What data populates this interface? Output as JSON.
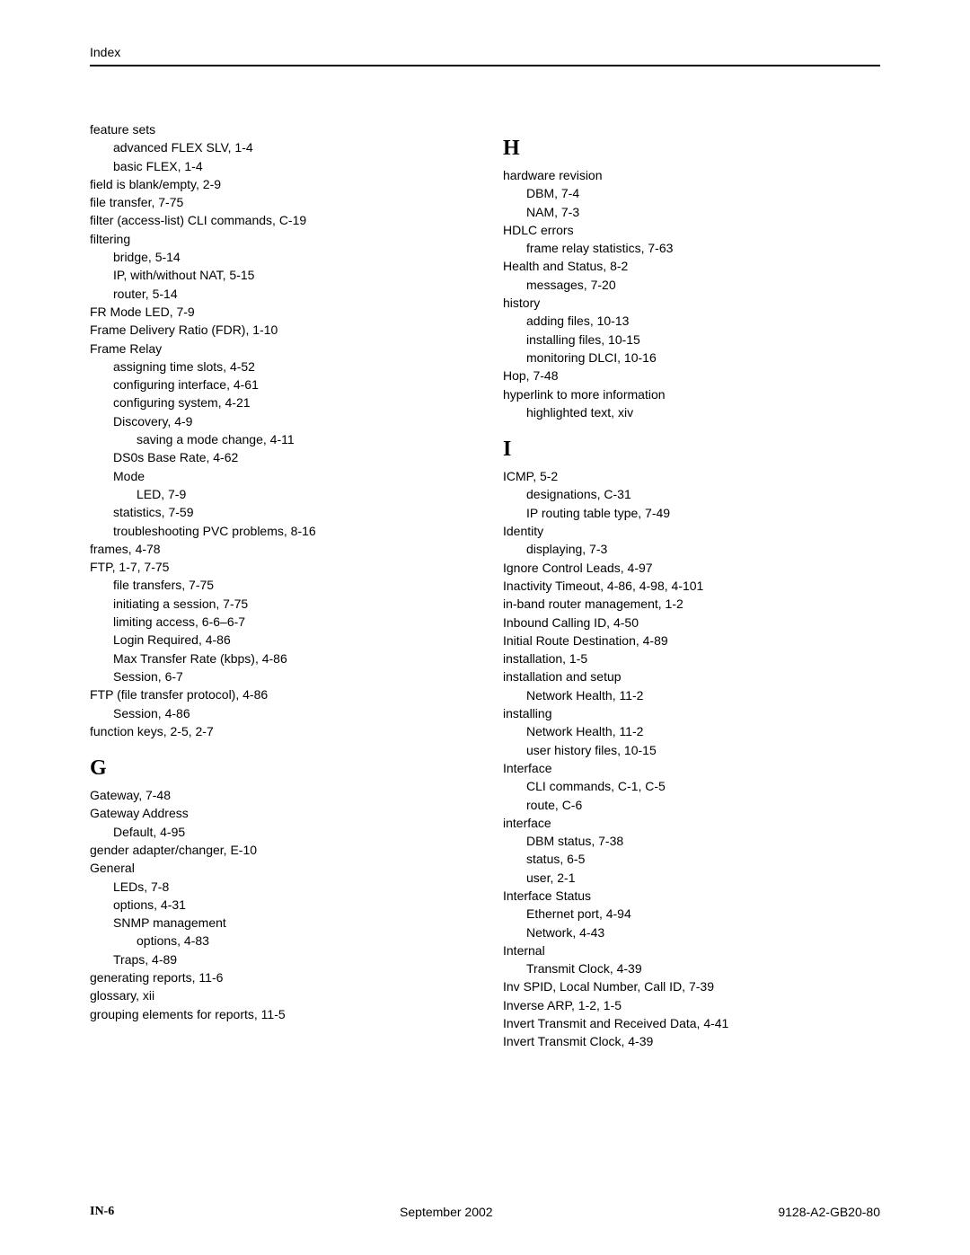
{
  "header": "Index",
  "footer": {
    "page_num": "IN-6",
    "date": "September 2002",
    "doc_id": "9128-A2-GB20-80"
  },
  "sections": {
    "left": [
      {
        "head": null,
        "entries": [
          {
            "lvl": 0,
            "text": "feature sets"
          },
          {
            "lvl": 1,
            "text": "advanced FLEX SLV,  1-4"
          },
          {
            "lvl": 1,
            "text": "basic FLEX,  1-4"
          },
          {
            "lvl": 0,
            "text": "field is blank/empty,  2-9"
          },
          {
            "lvl": 0,
            "text": "file transfer,  7-75"
          },
          {
            "lvl": 0,
            "text": "filter (access-list) CLI commands,  C-19"
          },
          {
            "lvl": 0,
            "text": "filtering"
          },
          {
            "lvl": 1,
            "text": "bridge,  5-14"
          },
          {
            "lvl": 1,
            "text": "IP, with/without NAT,  5-15"
          },
          {
            "lvl": 1,
            "text": "router,  5-14"
          },
          {
            "lvl": 0,
            "text": "FR Mode LED,  7-9"
          },
          {
            "lvl": 0,
            "text": "Frame Delivery Ratio (FDR),  1-10"
          },
          {
            "lvl": 0,
            "text": "Frame Relay"
          },
          {
            "lvl": 1,
            "text": "assigning time slots,  4-52"
          },
          {
            "lvl": 1,
            "text": "configuring interface,  4-61"
          },
          {
            "lvl": 1,
            "text": "configuring system,  4-21"
          },
          {
            "lvl": 1,
            "text": "Discovery,  4-9"
          },
          {
            "lvl": 2,
            "text": "saving a mode change,  4-11"
          },
          {
            "lvl": 1,
            "text": "DS0s Base Rate,  4-62"
          },
          {
            "lvl": 1,
            "text": "Mode"
          },
          {
            "lvl": 2,
            "text": "LED,  7-9"
          },
          {
            "lvl": 1,
            "text": "statistics,  7-59"
          },
          {
            "lvl": 1,
            "text": "troubleshooting PVC problems,  8-16"
          },
          {
            "lvl": 0,
            "text": "frames,  4-78"
          },
          {
            "lvl": 0,
            "text": "FTP,  1-7, 7-75"
          },
          {
            "lvl": 1,
            "text": "file transfers,  7-75"
          },
          {
            "lvl": 1,
            "text": "initiating a session,  7-75"
          },
          {
            "lvl": 1,
            "text": "limiting access,  6-6–6-7"
          },
          {
            "lvl": 1,
            "text": "Login Required,  4-86"
          },
          {
            "lvl": 1,
            "text": "Max Transfer Rate (kbps),  4-86"
          },
          {
            "lvl": 1,
            "text": "Session,  6-7"
          },
          {
            "lvl": 0,
            "text": "FTP (file transfer protocol),  4-86"
          },
          {
            "lvl": 1,
            "text": "Session,  4-86"
          },
          {
            "lvl": 0,
            "text": "function keys,  2-5, 2-7"
          }
        ]
      },
      {
        "head": "G",
        "entries": [
          {
            "lvl": 0,
            "text": "Gateway,  7-48"
          },
          {
            "lvl": 0,
            "text": "Gateway Address"
          },
          {
            "lvl": 1,
            "text": "Default,  4-95"
          },
          {
            "lvl": 0,
            "text": "gender adapter/changer,  E-10"
          },
          {
            "lvl": 0,
            "text": "General"
          },
          {
            "lvl": 1,
            "text": "LEDs,  7-8"
          },
          {
            "lvl": 1,
            "text": "options,  4-31"
          },
          {
            "lvl": 1,
            "text": "SNMP management"
          },
          {
            "lvl": 2,
            "text": "options,  4-83"
          },
          {
            "lvl": 1,
            "text": "Traps,  4-89"
          },
          {
            "lvl": 0,
            "text": "generating reports,  11-6"
          },
          {
            "lvl": 0,
            "text": "glossary,  xii"
          },
          {
            "lvl": 0,
            "text": "grouping elements for reports,  11-5"
          }
        ]
      }
    ],
    "right": [
      {
        "head": "H",
        "entries": [
          {
            "lvl": 0,
            "text": "hardware revision"
          },
          {
            "lvl": 1,
            "text": "DBM,  7-4"
          },
          {
            "lvl": 1,
            "text": "NAM,  7-3"
          },
          {
            "lvl": 0,
            "text": "HDLC errors"
          },
          {
            "lvl": 1,
            "text": "frame relay statistics,  7-63"
          },
          {
            "lvl": 0,
            "text": "Health and Status,  8-2"
          },
          {
            "lvl": 1,
            "text": "messages,  7-20"
          },
          {
            "lvl": 0,
            "text": "history"
          },
          {
            "lvl": 1,
            "text": "adding files,  10-13"
          },
          {
            "lvl": 1,
            "text": "installing files,  10-15"
          },
          {
            "lvl": 1,
            "text": "monitoring DLCI,  10-16"
          },
          {
            "lvl": 0,
            "text": "Hop,  7-48"
          },
          {
            "lvl": 0,
            "text": "hyperlink to more information"
          },
          {
            "lvl": 1,
            "text": "highlighted text,  xiv"
          }
        ]
      },
      {
        "head": "I",
        "entries": [
          {
            "lvl": 0,
            "text": "ICMP,  5-2"
          },
          {
            "lvl": 1,
            "text": "designations,  C-31"
          },
          {
            "lvl": 1,
            "text": "IP routing table type,  7-49"
          },
          {
            "lvl": 0,
            "text": "Identity"
          },
          {
            "lvl": 1,
            "text": "displaying,  7-3"
          },
          {
            "lvl": 0,
            "text": "Ignore Control Leads,  4-97"
          },
          {
            "lvl": 0,
            "text": "Inactivity Timeout,  4-86, 4-98, 4-101"
          },
          {
            "lvl": 0,
            "text": "in-band router management,  1-2"
          },
          {
            "lvl": 0,
            "text": "Inbound Calling ID,  4-50"
          },
          {
            "lvl": 0,
            "text": "Initial Route Destination,  4-89"
          },
          {
            "lvl": 0,
            "text": "installation,  1-5"
          },
          {
            "lvl": 0,
            "text": "installation and setup"
          },
          {
            "lvl": 1,
            "text": "Network Health,  11-2"
          },
          {
            "lvl": 0,
            "text": "installing"
          },
          {
            "lvl": 1,
            "text": "Network Health,  11-2"
          },
          {
            "lvl": 1,
            "text": "user history files,  10-15"
          },
          {
            "lvl": 0,
            "text": "Interface"
          },
          {
            "lvl": 1,
            "text": "CLI commands,  C-1, C-5"
          },
          {
            "lvl": 1,
            "text": "route,  C-6"
          },
          {
            "lvl": 0,
            "text": "interface"
          },
          {
            "lvl": 1,
            "text": "DBM status,  7-38"
          },
          {
            "lvl": 1,
            "text": "status,  6-5"
          },
          {
            "lvl": 1,
            "text": "user,  2-1"
          },
          {
            "lvl": 0,
            "text": "Interface Status"
          },
          {
            "lvl": 1,
            "text": "Ethernet port,  4-94"
          },
          {
            "lvl": 1,
            "text": "Network,  4-43"
          },
          {
            "lvl": 0,
            "text": "Internal"
          },
          {
            "lvl": 1,
            "text": "Transmit Clock,  4-39"
          },
          {
            "lvl": 0,
            "text": "Inv SPID, Local Number, Call ID,  7-39"
          },
          {
            "lvl": 0,
            "text": "Inverse ARP,  1-2, 1-5"
          },
          {
            "lvl": 0,
            "text": "Invert Transmit and Received Data,  4-41"
          },
          {
            "lvl": 0,
            "text": "Invert Transmit Clock,  4-39"
          }
        ]
      }
    ]
  }
}
